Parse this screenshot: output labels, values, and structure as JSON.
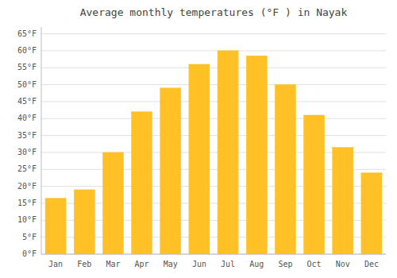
{
  "chart_data": {
    "type": "bar",
    "title": "Average monthly temperatures (°F ) in Nayak",
    "categories": [
      "Jan",
      "Feb",
      "Mar",
      "Apr",
      "May",
      "Jun",
      "Jul",
      "Aug",
      "Sep",
      "Oct",
      "Nov",
      "Dec"
    ],
    "values": [
      16.5,
      19.0,
      30.0,
      42.0,
      49.0,
      56.0,
      60.0,
      58.5,
      50.0,
      41.0,
      31.5,
      24.0
    ],
    "color": "#FFC125",
    "ylim": [
      0,
      67
    ],
    "yticks": [
      {
        "value": 0,
        "label": "0°F"
      },
      {
        "value": 5,
        "label": "5°F"
      },
      {
        "value": 10,
        "label": "10°F"
      },
      {
        "value": 15,
        "label": "15°F"
      },
      {
        "value": 20,
        "label": "20°F"
      },
      {
        "value": 25,
        "label": "25°F"
      },
      {
        "value": 30,
        "label": "30°F"
      },
      {
        "value": 35,
        "label": "35°F"
      },
      {
        "value": 40,
        "label": "40°F"
      },
      {
        "value": 45,
        "label": "45°F"
      },
      {
        "value": 50,
        "label": "50°F"
      },
      {
        "value": 55,
        "label": "55°F"
      },
      {
        "value": 60,
        "label": "60°F"
      },
      {
        "value": 65,
        "label": "65°F"
      }
    ],
    "grid": true
  }
}
